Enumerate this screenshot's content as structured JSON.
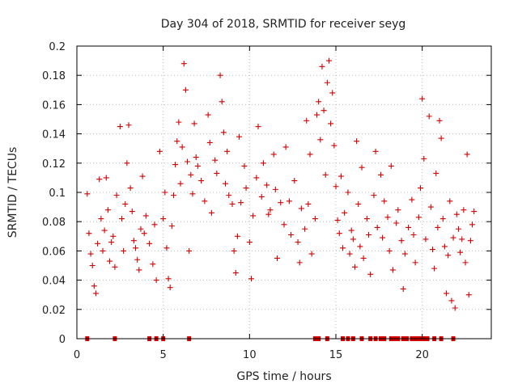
{
  "chart_data": {
    "type": "scatter",
    "title": "Day 304 of 2018, SRMTID for receiver seyg",
    "xlabel": "GPS time / hours",
    "ylabel": "SRMTID / TECUs",
    "xlim": [
      0,
      24
    ],
    "ylim": [
      0,
      0.2
    ],
    "xticks": [
      0,
      5,
      10,
      15,
      20
    ],
    "xtick_labels": [
      "0",
      "5",
      "10",
      "15",
      "20"
    ],
    "yticks": [
      0,
      0.02,
      0.04,
      0.06,
      0.08,
      0.1,
      0.12,
      0.14,
      0.16,
      0.18,
      0.2
    ],
    "ytick_labels": [
      "0",
      "0.02",
      "0.04",
      "0.06",
      "0.08",
      "0.1",
      "0.12",
      "0.14",
      "0.16",
      "0.18",
      "0.2"
    ],
    "grid": true,
    "marker": "plus",
    "color": "#d40000",
    "series": [
      {
        "name": "SRMTID",
        "points": [
          [
            0.6,
            0.099
          ],
          [
            0.7,
            0.072
          ],
          [
            0.8,
            0.058
          ],
          [
            0.9,
            0.05
          ],
          [
            1.0,
            0.036
          ],
          [
            1.1,
            0.031
          ],
          [
            1.2,
            0.065
          ],
          [
            1.3,
            0.109
          ],
          [
            1.4,
            0.082
          ],
          [
            1.5,
            0.06
          ],
          [
            1.6,
            0.074
          ],
          [
            1.7,
            0.11
          ],
          [
            1.8,
            0.088
          ],
          [
            1.9,
            0.053
          ],
          [
            2.0,
            0.066
          ],
          [
            2.1,
            0.07
          ],
          [
            2.2,
            0.049
          ],
          [
            2.3,
            0.098
          ],
          [
            2.5,
            0.145
          ],
          [
            2.6,
            0.082
          ],
          [
            2.7,
            0.06
          ],
          [
            2.8,
            0.092
          ],
          [
            2.9,
            0.12
          ],
          [
            3.0,
            0.146
          ],
          [
            3.1,
            0.103
          ],
          [
            3.2,
            0.087
          ],
          [
            3.3,
            0.067
          ],
          [
            3.4,
            0.062
          ],
          [
            3.5,
            0.054
          ],
          [
            3.6,
            0.047
          ],
          [
            3.7,
            0.075
          ],
          [
            3.8,
            0.111
          ],
          [
            3.9,
            0.072
          ],
          [
            4.0,
            0.084
          ],
          [
            4.2,
            0.065
          ],
          [
            4.4,
            0.051
          ],
          [
            4.5,
            0.078
          ],
          [
            4.6,
            0.04
          ],
          [
            4.8,
            0.128
          ],
          [
            5.0,
            0.082
          ],
          [
            5.1,
            0.1
          ],
          [
            5.2,
            0.062
          ],
          [
            5.3,
            0.041
          ],
          [
            5.4,
            0.035
          ],
          [
            5.5,
            0.077
          ],
          [
            5.6,
            0.098
          ],
          [
            5.7,
            0.119
          ],
          [
            5.8,
            0.135
          ],
          [
            5.9,
            0.148
          ],
          [
            6.0,
            0.106
          ],
          [
            6.1,
            0.131
          ],
          [
            6.2,
            0.188
          ],
          [
            6.3,
            0.17
          ],
          [
            6.4,
            0.121
          ],
          [
            6.5,
            0.06
          ],
          [
            6.6,
            0.112
          ],
          [
            6.7,
            0.099
          ],
          [
            6.8,
            0.147
          ],
          [
            6.9,
            0.124
          ],
          [
            7.0,
            0.118
          ],
          [
            7.2,
            0.108
          ],
          [
            7.4,
            0.094
          ],
          [
            7.6,
            0.153
          ],
          [
            7.7,
            0.134
          ],
          [
            7.8,
            0.086
          ],
          [
            8.0,
            0.122
          ],
          [
            8.1,
            0.113
          ],
          [
            8.3,
            0.18
          ],
          [
            8.4,
            0.162
          ],
          [
            8.5,
            0.141
          ],
          [
            8.6,
            0.106
          ],
          [
            8.7,
            0.128
          ],
          [
            8.8,
            0.098
          ],
          [
            9.0,
            0.092
          ],
          [
            9.1,
            0.06
          ],
          [
            9.2,
            0.045
          ],
          [
            9.3,
            0.07
          ],
          [
            9.4,
            0.138
          ],
          [
            9.5,
            0.093
          ],
          [
            9.7,
            0.118
          ],
          [
            9.8,
            0.103
          ],
          [
            10.0,
            0.066
          ],
          [
            10.1,
            0.041
          ],
          [
            10.2,
            0.084
          ],
          [
            10.4,
            0.11
          ],
          [
            10.5,
            0.145
          ],
          [
            10.7,
            0.097
          ],
          [
            10.8,
            0.12
          ],
          [
            11.0,
            0.105
          ],
          [
            11.1,
            0.085
          ],
          [
            11.2,
            0.088
          ],
          [
            11.4,
            0.126
          ],
          [
            11.5,
            0.102
          ],
          [
            11.6,
            0.055
          ],
          [
            11.8,
            0.093
          ],
          [
            12.0,
            0.078
          ],
          [
            12.1,
            0.131
          ],
          [
            12.3,
            0.094
          ],
          [
            12.4,
            0.071
          ],
          [
            12.6,
            0.108
          ],
          [
            12.8,
            0.066
          ],
          [
            12.9,
            0.052
          ],
          [
            13.0,
            0.089
          ],
          [
            13.2,
            0.075
          ],
          [
            13.3,
            0.149
          ],
          [
            13.4,
            0.092
          ],
          [
            13.5,
            0.126
          ],
          [
            13.6,
            0.058
          ],
          [
            13.8,
            0.082
          ],
          [
            13.9,
            0.153
          ],
          [
            14.0,
            0.162
          ],
          [
            14.1,
            0.136
          ],
          [
            14.2,
            0.186
          ],
          [
            14.3,
            0.156
          ],
          [
            14.4,
            0.112
          ],
          [
            14.5,
            0.175
          ],
          [
            14.6,
            0.19
          ],
          [
            14.7,
            0.147
          ],
          [
            14.8,
            0.168
          ],
          [
            14.9,
            0.132
          ],
          [
            15.0,
            0.104
          ],
          [
            15.1,
            0.081
          ],
          [
            15.2,
            0.072
          ],
          [
            15.3,
            0.111
          ],
          [
            15.4,
            0.062
          ],
          [
            15.5,
            0.086
          ],
          [
            15.7,
            0.1
          ],
          [
            15.8,
            0.058
          ],
          [
            15.9,
            0.074
          ],
          [
            16.0,
            0.068
          ],
          [
            16.1,
            0.049
          ],
          [
            16.2,
            0.135
          ],
          [
            16.3,
            0.092
          ],
          [
            16.4,
            0.063
          ],
          [
            16.5,
            0.117
          ],
          [
            16.6,
            0.055
          ],
          [
            16.8,
            0.082
          ],
          [
            16.9,
            0.071
          ],
          [
            17.0,
            0.044
          ],
          [
            17.2,
            0.098
          ],
          [
            17.3,
            0.128
          ],
          [
            17.4,
            0.076
          ],
          [
            17.6,
            0.112
          ],
          [
            17.7,
            0.069
          ],
          [
            17.8,
            0.094
          ],
          [
            18.0,
            0.083
          ],
          [
            18.1,
            0.06
          ],
          [
            18.2,
            0.118
          ],
          [
            18.3,
            0.047
          ],
          [
            18.5,
            0.079
          ],
          [
            18.6,
            0.088
          ],
          [
            18.8,
            0.067
          ],
          [
            18.9,
            0.034
          ],
          [
            19.0,
            0.058
          ],
          [
            19.2,
            0.076
          ],
          [
            19.4,
            0.095
          ],
          [
            19.5,
            0.071
          ],
          [
            19.6,
            0.052
          ],
          [
            19.8,
            0.083
          ],
          [
            19.9,
            0.103
          ],
          [
            20.0,
            0.164
          ],
          [
            20.1,
            0.123
          ],
          [
            20.2,
            0.068
          ],
          [
            20.4,
            0.152
          ],
          [
            20.5,
            0.09
          ],
          [
            20.6,
            0.061
          ],
          [
            20.7,
            0.048
          ],
          [
            20.8,
            0.113
          ],
          [
            20.9,
            0.076
          ],
          [
            21.0,
            0.149
          ],
          [
            21.1,
            0.137
          ],
          [
            21.2,
            0.082
          ],
          [
            21.3,
            0.063
          ],
          [
            21.4,
            0.031
          ],
          [
            21.5,
            0.057
          ],
          [
            21.6,
            0.094
          ],
          [
            21.7,
            0.026
          ],
          [
            21.8,
            0.069
          ],
          [
            21.9,
            0.021
          ],
          [
            22.0,
            0.085
          ],
          [
            22.1,
            0.075
          ],
          [
            22.2,
            0.059
          ],
          [
            22.3,
            0.068
          ],
          [
            22.4,
            0.088
          ],
          [
            22.5,
            0.052
          ],
          [
            22.6,
            0.126
          ],
          [
            22.7,
            0.03
          ],
          [
            22.8,
            0.067
          ],
          [
            22.9,
            0.078
          ],
          [
            23.0,
            0.087
          ]
        ]
      }
    ],
    "zero_markers_x": [
      0.6,
      2.2,
      4.2,
      4.6,
      5.0,
      6.5,
      13.8,
      14.0,
      14.5,
      15.4,
      15.7,
      16.0,
      16.5,
      17.0,
      17.3,
      17.6,
      17.8,
      18.2,
      18.4,
      18.6,
      18.9,
      19.1,
      19.4,
      19.6,
      19.8,
      19.9,
      20.1,
      20.3,
      20.7,
      21.1,
      21.8
    ]
  }
}
